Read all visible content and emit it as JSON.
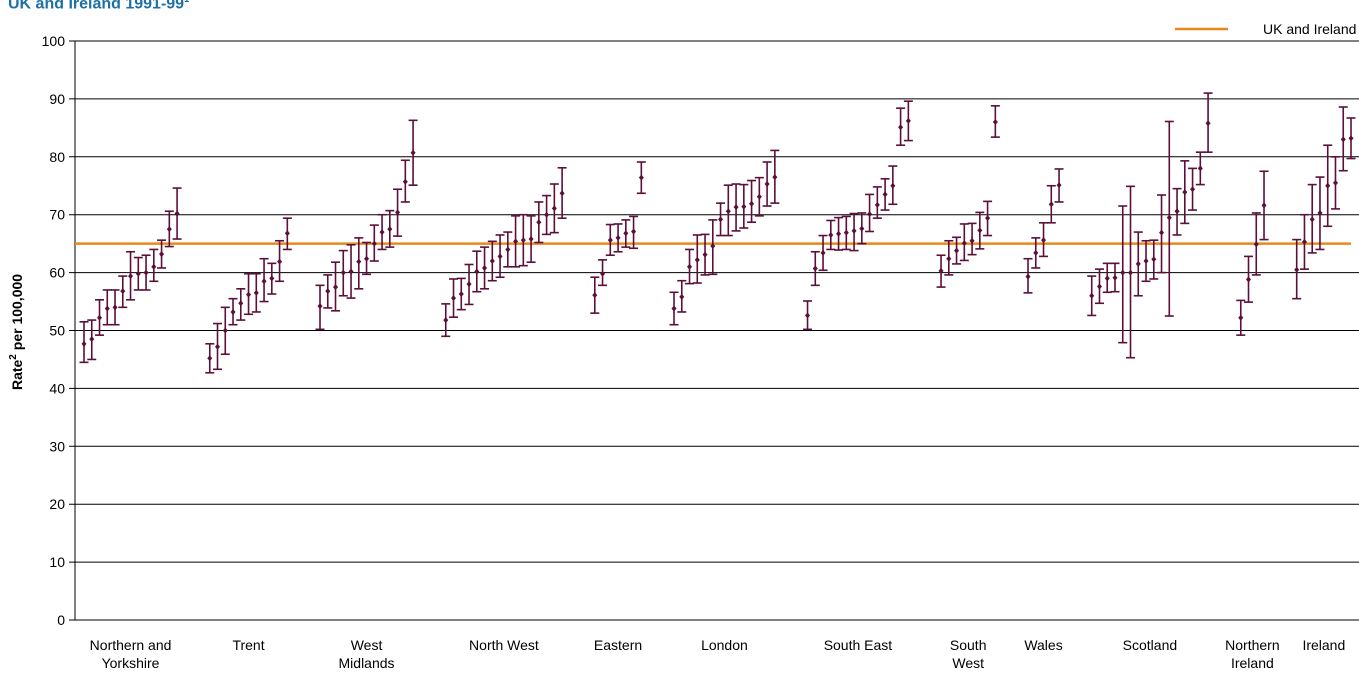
{
  "chart_data": {
    "type": "scatter",
    "title": "UK and Ireland 1991-99",
    "title_superscript": "1",
    "xlabel": "",
    "ylabel": "Rate",
    "ylabel_superscript": "2",
    "ylabel_suffix": " per 100,000",
    "ylim": [
      0,
      100
    ],
    "yticks": [
      0,
      10,
      20,
      30,
      40,
      50,
      60,
      70,
      80,
      90,
      100
    ],
    "grid": true,
    "legend_position": "top-right",
    "reference_line": {
      "name": "UK and Ireland",
      "value": 65,
      "color": "#e8891e"
    },
    "marker_color": "#5b0f3a",
    "regions": [
      {
        "name": [
          "Northern and",
          "Yorkshire"
        ],
        "points": [
          [
            47.7,
            44.5,
            51.5
          ],
          [
            48.5,
            45.0,
            51.8
          ],
          [
            52.2,
            49.2,
            55.3
          ],
          [
            53.8,
            51.0,
            57.0
          ],
          [
            54.0,
            51.0,
            57.0
          ],
          [
            56.8,
            54.0,
            59.4
          ],
          [
            59.4,
            55.3,
            63.6
          ],
          [
            59.8,
            57.0,
            62.6
          ],
          [
            60.0,
            57.0,
            63.0
          ],
          [
            61.0,
            58.5,
            64.0
          ],
          [
            63.2,
            60.8,
            65.6
          ],
          [
            67.5,
            64.5,
            70.6
          ],
          [
            70.2,
            65.8,
            74.6
          ]
        ]
      },
      {
        "name": [
          "Trent"
        ],
        "points": [
          [
            45.2,
            42.7,
            47.7
          ],
          [
            47.2,
            43.3,
            51.2
          ],
          [
            50.0,
            45.9,
            54.0
          ],
          [
            53.2,
            51.0,
            55.5
          ],
          [
            54.7,
            51.8,
            57.2
          ],
          [
            56.2,
            52.8,
            59.8
          ],
          [
            56.5,
            53.2,
            59.8
          ],
          [
            58.5,
            55.0,
            62.4
          ],
          [
            59.0,
            56.3,
            61.6
          ],
          [
            61.9,
            58.5,
            65.5
          ],
          [
            66.8,
            64.0,
            69.4
          ]
        ]
      },
      {
        "name": [
          "West",
          "Midlands"
        ],
        "points": [
          [
            54.2,
            50.2,
            57.8
          ],
          [
            56.8,
            53.9,
            59.6
          ],
          [
            57.5,
            53.4,
            61.8
          ],
          [
            60.0,
            56.0,
            63.8
          ],
          [
            60.2,
            55.6,
            64.8
          ],
          [
            61.9,
            57.2,
            66.0
          ],
          [
            62.4,
            59.7,
            65.2
          ],
          [
            65.0,
            62.0,
            68.2
          ],
          [
            67.0,
            64.0,
            70.0
          ],
          [
            67.5,
            64.4,
            70.7
          ],
          [
            70.4,
            66.3,
            74.4
          ],
          [
            75.7,
            72.2,
            79.4
          ],
          [
            80.7,
            75.1,
            86.3
          ]
        ]
      },
      {
        "name": [
          "North West"
        ],
        "points": [
          [
            51.8,
            49.0,
            54.6
          ],
          [
            55.6,
            52.3,
            58.9
          ],
          [
            56.3,
            53.6,
            59.0
          ],
          [
            58.0,
            54.5,
            61.4
          ],
          [
            60.2,
            56.7,
            63.7
          ],
          [
            60.8,
            57.2,
            64.4
          ],
          [
            62.0,
            58.6,
            65.4
          ],
          [
            62.8,
            59.2,
            66.5
          ],
          [
            64.0,
            61.0,
            67.0
          ],
          [
            65.4,
            61.0,
            69.8
          ],
          [
            65.6,
            61.2,
            70.0
          ],
          [
            65.8,
            61.8,
            69.8
          ],
          [
            68.7,
            65.2,
            72.2
          ],
          [
            70.0,
            66.6,
            73.3
          ],
          [
            71.1,
            66.9,
            75.3
          ],
          [
            73.7,
            69.4,
            78.1
          ]
        ]
      },
      {
        "name": [
          "Eastern"
        ],
        "points": [
          [
            56.1,
            53.0,
            59.2
          ],
          [
            59.8,
            57.8,
            62.2
          ],
          [
            65.6,
            63.0,
            68.3
          ],
          [
            66.0,
            63.6,
            68.4
          ],
          [
            66.8,
            64.4,
            69.1
          ],
          [
            67.1,
            64.2,
            69.7
          ],
          [
            76.4,
            73.7,
            79.1
          ]
        ]
      },
      {
        "name": [
          "London"
        ],
        "points": [
          [
            53.8,
            51.0,
            56.6
          ],
          [
            55.8,
            53.2,
            58.6
          ],
          [
            61.0,
            58.1,
            64.0
          ],
          [
            62.2,
            58.2,
            66.5
          ],
          [
            63.1,
            59.6,
            66.6
          ],
          [
            64.6,
            59.7,
            69.1
          ],
          [
            69.2,
            66.4,
            72.0
          ],
          [
            70.6,
            66.4,
            75.1
          ],
          [
            71.3,
            67.2,
            75.3
          ],
          [
            71.4,
            67.7,
            75.2
          ],
          [
            71.9,
            68.7,
            75.9
          ],
          [
            73.1,
            69.8,
            76.4
          ],
          [
            75.3,
            71.5,
            79.1
          ],
          [
            76.5,
            72.0,
            81.1
          ]
        ]
      },
      {
        "name": [
          "South East"
        ],
        "points": [
          [
            52.6,
            50.2,
            55.1
          ],
          [
            60.7,
            57.8,
            63.6
          ],
          [
            63.4,
            60.4,
            66.4
          ],
          [
            66.5,
            64.0,
            69.0
          ],
          [
            66.7,
            63.9,
            69.5
          ],
          [
            66.9,
            64.0,
            69.7
          ],
          [
            67.2,
            63.8,
            70.2
          ],
          [
            67.6,
            65.0,
            70.3
          ],
          [
            70.1,
            67.1,
            73.5
          ],
          [
            71.7,
            69.4,
            74.8
          ],
          [
            73.5,
            70.8,
            76.2
          ],
          [
            75.0,
            71.8,
            78.4
          ],
          [
            85.1,
            82.0,
            88.4
          ],
          [
            86.2,
            82.8,
            89.6
          ]
        ]
      },
      {
        "name": [
          "South",
          "West"
        ],
        "points": [
          [
            60.3,
            57.5,
            63.0
          ],
          [
            62.4,
            59.6,
            65.5
          ],
          [
            63.8,
            61.5,
            66.1
          ],
          [
            65.1,
            62.1,
            68.4
          ],
          [
            65.5,
            63.1,
            68.5
          ],
          [
            67.3,
            64.1,
            70.4
          ],
          [
            69.4,
            66.4,
            72.3
          ],
          [
            86.0,
            83.4,
            88.8
          ]
        ]
      },
      {
        "name": [
          "Wales"
        ],
        "points": [
          [
            59.3,
            56.5,
            62.4
          ],
          [
            63.4,
            60.8,
            66.0
          ],
          [
            65.6,
            62.8,
            68.6
          ],
          [
            71.8,
            68.6,
            75.0
          ],
          [
            75.1,
            72.2,
            77.9
          ]
        ]
      },
      {
        "name": [
          "Scotland"
        ],
        "points": [
          [
            56.0,
            52.6,
            59.4
          ],
          [
            57.6,
            54.7,
            60.6
          ],
          [
            59.0,
            56.6,
            61.6
          ],
          [
            59.1,
            56.7,
            61.6
          ],
          [
            60.0,
            47.9,
            71.5
          ],
          [
            60.0,
            45.3,
            74.9
          ],
          [
            61.5,
            56.0,
            67.0
          ],
          [
            62.0,
            58.5,
            65.5
          ],
          [
            62.3,
            58.9,
            65.6
          ],
          [
            66.9,
            60.0,
            73.4
          ],
          [
            69.5,
            52.5,
            86.1
          ],
          [
            70.6,
            66.5,
            74.5
          ],
          [
            73.9,
            68.5,
            79.3
          ],
          [
            74.4,
            70.8,
            78.0
          ],
          [
            78.0,
            75.2,
            80.8
          ],
          [
            85.8,
            80.8,
            91.0
          ]
        ]
      },
      {
        "name": [
          "Northern",
          "Ireland"
        ],
        "points": [
          [
            52.2,
            49.2,
            55.2
          ],
          [
            58.8,
            54.9,
            62.8
          ],
          [
            64.9,
            59.6,
            70.3
          ],
          [
            71.6,
            65.7,
            77.5
          ]
        ]
      },
      {
        "name": [
          "Ireland"
        ],
        "points": [
          [
            60.5,
            55.5,
            65.7
          ],
          [
            65.3,
            60.6,
            70.0
          ],
          [
            69.2,
            63.4,
            75.2
          ],
          [
            70.3,
            64.0,
            76.5
          ],
          [
            75.0,
            68.0,
            82.0
          ],
          [
            75.5,
            71.0,
            80.0
          ],
          [
            83.0,
            77.6,
            88.6
          ],
          [
            83.2,
            79.7,
            86.7
          ]
        ]
      }
    ]
  }
}
